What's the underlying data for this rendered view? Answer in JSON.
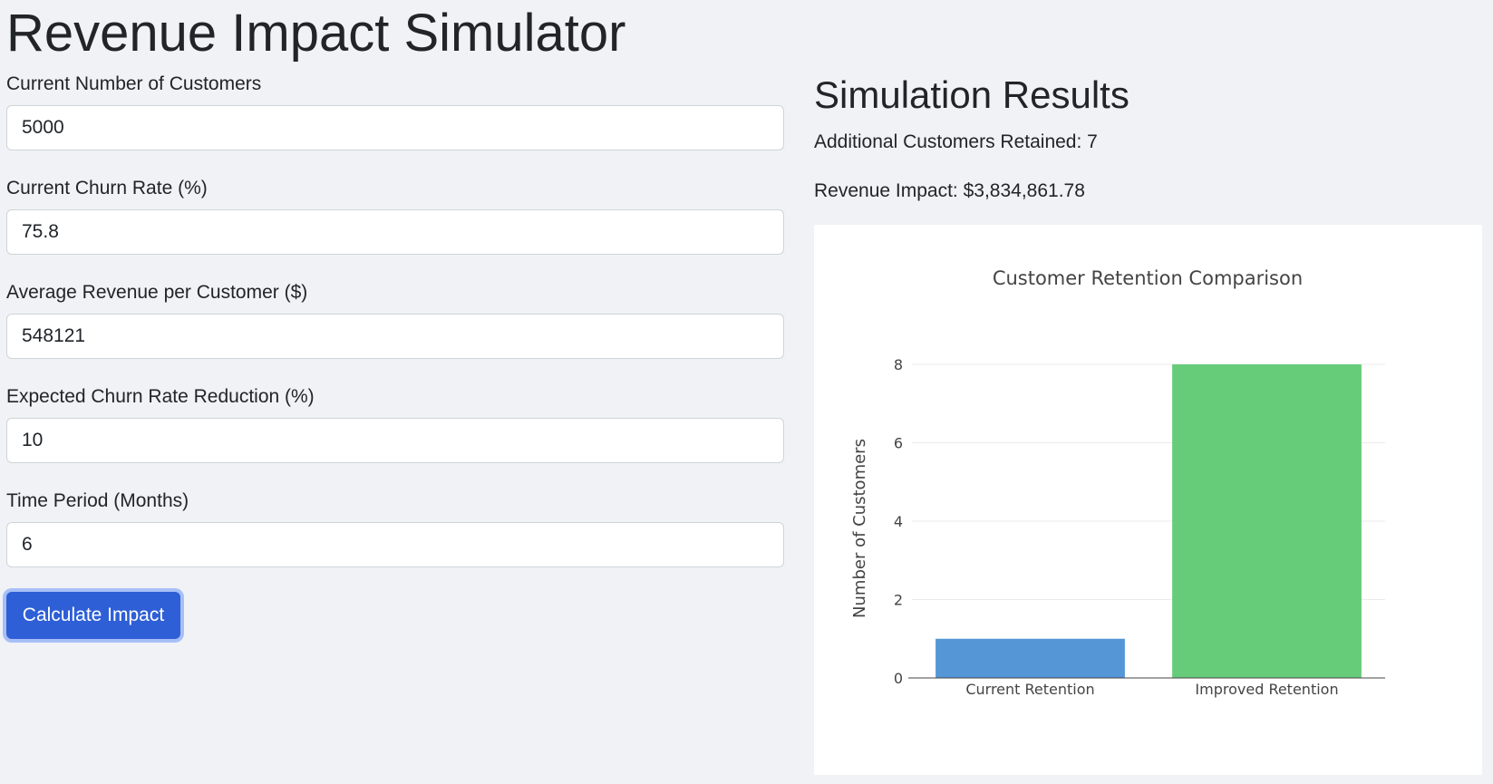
{
  "title": "Revenue Impact Simulator",
  "form": {
    "fields": [
      {
        "label": "Current Number of Customers",
        "value": "5000"
      },
      {
        "label": "Current Churn Rate (%)",
        "value": "75.8"
      },
      {
        "label": "Average Revenue per Customer ($)",
        "value": "548121"
      },
      {
        "label": "Expected Churn Rate Reduction (%)",
        "value": "10"
      },
      {
        "label": "Time Period (Months)",
        "value": "6"
      }
    ],
    "button_label": "Calculate Impact"
  },
  "results": {
    "heading": "Simulation Results",
    "additional_customers": "Additional Customers Retained: 7",
    "revenue_impact": "Revenue Impact: $3,834,861.78"
  },
  "chart_data": {
    "type": "bar",
    "title": "Customer Retention Comparison",
    "xlabel": "",
    "ylabel": "Number of Customers",
    "categories": [
      "Current Retention",
      "Improved Retention"
    ],
    "values": [
      1,
      8
    ],
    "colors": [
      "#5596d6",
      "#66cc7a"
    ],
    "ylim": [
      0,
      8
    ],
    "yticks": [
      0,
      2,
      4,
      6,
      8
    ],
    "grid": true
  }
}
